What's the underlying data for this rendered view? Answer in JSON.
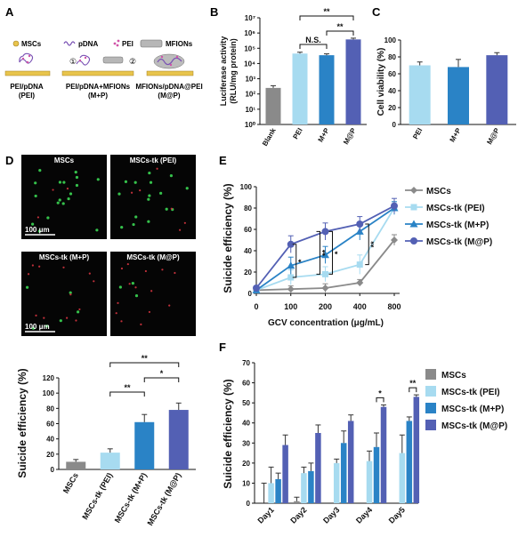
{
  "panel_labels": [
    "A",
    "B",
    "C",
    "D",
    "E",
    "F"
  ],
  "schematic": {
    "legend": {
      "mscs": "MSCs",
      "pdna": "pDNA",
      "pei": "PEI",
      "mfions": "MFIONs"
    },
    "steps": [
      "①",
      "②"
    ],
    "groups": [
      {
        "line1": "PEI/pDNA",
        "line2": "(PEI)"
      },
      {
        "line1": "PEI/pDNA+MFIONs",
        "line2": "(M+P)"
      },
      {
        "line1": "MFIONs/pDNA@PEI",
        "line2": "(M@P)"
      }
    ]
  },
  "micrographs": [
    {
      "label": "MSCs",
      "scale": "100 μm",
      "green": 18,
      "red": 3
    },
    {
      "label": "MSCs-tk (PEI)",
      "scale": "",
      "green": 16,
      "red": 6
    },
    {
      "label": "MSCs-tk (M+P)",
      "scale": "100 μm",
      "green": 6,
      "red": 12
    },
    {
      "label": "MSCs-tk (M@P)",
      "scale": "",
      "green": 3,
      "red": 14
    }
  ],
  "colors": {
    "grey": "#8a8a8a",
    "light": "#a7dbf0",
    "mid": "#2a83c6",
    "dark": "#5360b4",
    "green": "#35c14b",
    "red": "#c0303a"
  },
  "chart_data": [
    {
      "id": "B",
      "type": "bar",
      "yscale": "log",
      "ylabel_line1": "Luciferase activity",
      "ylabel_line2": "(RLU/mg protein)",
      "categories": [
        "Blank",
        "PEI",
        "M+P",
        "M@P"
      ],
      "values": [
        250,
        45000,
        35000,
        380000
      ],
      "errors": [
        100,
        10000,
        8000,
        80000
      ],
      "ylim": [
        1,
        10000000
      ],
      "yticks": [
        "10⁰",
        "10¹",
        "10²",
        "10³",
        "10⁴",
        "10⁵",
        "10⁶",
        "10⁷"
      ],
      "annotations": [
        {
          "from": 1,
          "to": 2,
          "text": "N.S."
        },
        {
          "from": 2,
          "to": 3,
          "text": "**"
        },
        {
          "from": 1,
          "to": 3,
          "text": "**"
        }
      ]
    },
    {
      "id": "C",
      "type": "bar",
      "ylabel": "Cell viability (%)",
      "categories": [
        "PEI",
        "M+P",
        "M@P"
      ],
      "values": [
        70,
        68,
        82
      ],
      "errors": [
        4,
        9,
        3
      ],
      "ylim": [
        0,
        100
      ],
      "yticks": [
        "0",
        "20",
        "40",
        "60",
        "80",
        "100"
      ]
    },
    {
      "id": "D",
      "type": "bar",
      "ylabel": "Suicide efficiency (%)",
      "categories": [
        "MSCs",
        "MSCs-tk (PEI)",
        "MSCs-tk (M+P)",
        "MSCs-tk (M@P)"
      ],
      "values": [
        10,
        22,
        62,
        78
      ],
      "errors": [
        3,
        5,
        10,
        9
      ],
      "ylim": [
        0,
        120
      ],
      "yticks": [
        "0",
        "20",
        "40",
        "60",
        "80",
        "100",
        "120"
      ],
      "annotations": [
        {
          "from": 2,
          "to": 3,
          "text": "*"
        },
        {
          "from": 1,
          "to": 2,
          "text": "**"
        },
        {
          "from": 1,
          "to": 3,
          "text": "**"
        }
      ]
    },
    {
      "id": "E",
      "type": "line",
      "ylabel": "Suicide efficiency (%)",
      "xlabel": "GCV concentration (μg/mL)",
      "x": [
        "0",
        "100",
        "200",
        "400",
        "800"
      ],
      "ylim": [
        0,
        100
      ],
      "yticks": [
        "0",
        "20",
        "40",
        "60",
        "80",
        "100"
      ],
      "series": [
        {
          "name": "MSCs",
          "values": [
            3,
            4,
            5,
            10,
            50
          ],
          "errors": [
            2,
            3,
            4,
            3,
            5
          ]
        },
        {
          "name": "MSCs-tk (PEI)",
          "values": [
            3,
            15,
            18,
            27,
            80
          ],
          "errors": [
            2,
            7,
            7,
            9,
            6
          ]
        },
        {
          "name": "MSCs-tk (M+P)",
          "values": [
            3,
            26,
            36,
            58,
            80
          ],
          "errors": [
            2,
            8,
            8,
            8,
            6
          ]
        },
        {
          "name": "MSCs-tk (M@P)",
          "values": [
            5,
            46,
            58,
            65,
            82
          ],
          "errors": [
            2,
            8,
            8,
            7,
            7
          ]
        }
      ],
      "sig": [
        "*",
        "**",
        "*",
        "**"
      ]
    },
    {
      "id": "F",
      "type": "bar",
      "ylabel": "Suicide efficiency (%)",
      "categories": [
        "Day1",
        "Day2",
        "Day3",
        "Day4",
        "Day5"
      ],
      "ylim": [
        0,
        70
      ],
      "yticks": [
        "0",
        "10",
        "20",
        "30",
        "40",
        "50",
        "60",
        "70"
      ],
      "series": [
        {
          "name": "MSCs",
          "values": [
            0,
            1,
            0,
            0,
            0
          ],
          "errors": [
            10,
            2,
            0,
            0,
            0
          ]
        },
        {
          "name": "MSCs-tk (PEI)",
          "values": [
            10,
            15,
            20,
            21,
            25
          ],
          "errors": [
            8,
            3,
            2,
            5,
            9
          ]
        },
        {
          "name": "MSCs-tk (M+P)",
          "values": [
            12,
            16,
            30,
            28,
            41
          ],
          "errors": [
            3,
            4,
            6,
            7,
            2
          ]
        },
        {
          "name": "MSCs-tk (M@P)",
          "values": [
            29,
            35,
            41,
            48,
            53
          ],
          "errors": [
            5,
            4,
            3,
            1,
            1
          ]
        }
      ],
      "annotations": [
        {
          "day": 3,
          "text": "*"
        },
        {
          "day": 4,
          "text": "**"
        }
      ]
    }
  ]
}
